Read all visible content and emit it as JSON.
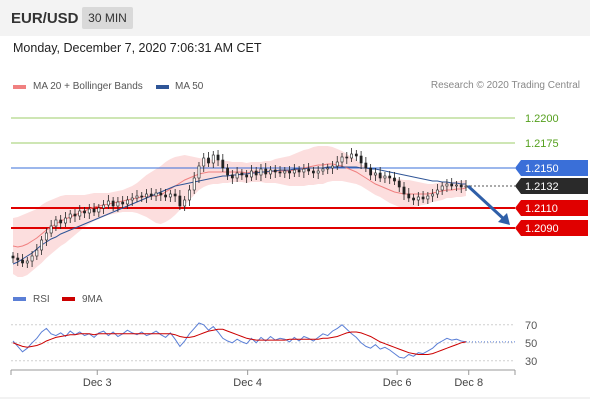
{
  "header": {
    "pair": "EUR/USD",
    "timeframe": "30 MIN",
    "datetime": "Monday, December 7, 2020 7:06:31 AM CET"
  },
  "price_panel": {
    "legend": [
      {
        "label": "MA 20 + Bollinger Bands",
        "color": "#f08080"
      },
      {
        "label": "MA 50",
        "color": "#2f5597"
      }
    ],
    "credit": "Research © 2020 Trading Central"
  },
  "rsi_panel": {
    "legend": [
      {
        "label": "RSI",
        "color": "#5b7fd6"
      },
      {
        "label": "9MA",
        "color": "#cc0000"
      }
    ]
  },
  "chart_data": [
    {
      "type": "candlestick",
      "ylim": [
        1.2042,
        1.2222
      ],
      "x_ticks": [
        "Dec 3",
        "Dec 4",
        "Dec 6",
        "Dec 8"
      ],
      "levels": [
        {
          "value": 1.22,
          "label": "1.2200",
          "color": "#6aab30",
          "style": "line-label"
        },
        {
          "value": 1.2175,
          "label": "1.2175",
          "color": "#6aab30",
          "style": "line-label"
        },
        {
          "value": 1.215,
          "label": "1.2150",
          "color": "#3a6fd8",
          "style": "box"
        },
        {
          "value": 1.2132,
          "label": "1.2132",
          "color": "#2a2a2a",
          "style": "box"
        },
        {
          "value": 1.211,
          "label": "1.2110",
          "color": "#e00000",
          "style": "box"
        },
        {
          "value": 1.209,
          "label": "1.2090",
          "color": "#e00000",
          "style": "box"
        }
      ],
      "forecast_arrow": {
        "from": 1.2132,
        "to": 1.209,
        "color": "#2f5fa8"
      },
      "close": [
        1.206,
        1.2058,
        1.2055,
        1.2057,
        1.2062,
        1.2068,
        1.2078,
        1.2085,
        1.2092,
        1.2098,
        1.2095,
        1.21,
        1.2104,
        1.2102,
        1.2107,
        1.2105,
        1.2109,
        1.2106,
        1.211,
        1.2113,
        1.2117,
        1.2112,
        1.2116,
        1.2114,
        1.2118,
        1.212,
        1.2122,
        1.2121,
        1.2124,
        1.2122,
        1.2125,
        1.2123,
        1.2121,
        1.2124,
        1.2122,
        1.2112,
        1.2118,
        1.2128,
        1.214,
        1.2152,
        1.216,
        1.2155,
        1.2163,
        1.2158,
        1.215,
        1.2143,
        1.214,
        1.2145,
        1.2143,
        1.2141,
        1.2147,
        1.2143,
        1.2149,
        1.2144,
        1.2148,
        1.2146,
        1.2145,
        1.2147,
        1.2145,
        1.2148,
        1.2146,
        1.2149,
        1.2147,
        1.2145,
        1.2147,
        1.2149,
        1.215,
        1.2152,
        1.2156,
        1.2161,
        1.216,
        1.2164,
        1.2162,
        1.2155,
        1.215,
        1.2143,
        1.2145,
        1.214,
        1.2142,
        1.214,
        1.2137,
        1.2131,
        1.2124,
        1.212,
        1.2118,
        1.2121,
        1.2119,
        1.2122,
        1.2124,
        1.2128,
        1.2132,
        1.2134,
        1.2132,
        1.2133,
        1.2131,
        1.2132
      ],
      "ma20": [
        1.2072,
        1.2071,
        1.2072,
        1.2074,
        1.2077,
        1.208,
        1.2084,
        1.2088,
        1.2091,
        1.2094,
        1.2097,
        1.2099,
        1.2101,
        1.2103,
        1.2105,
        1.2107,
        1.2109,
        1.2111,
        1.2112,
        1.2113,
        1.2114,
        1.2115,
        1.2116,
        1.2117,
        1.2118,
        1.2119,
        1.212,
        1.2121,
        1.2122,
        1.2122,
        1.2122,
        1.2123,
        1.2126,
        1.2129,
        1.2132,
        1.2135,
        1.2138,
        1.214,
        1.2142,
        1.2144,
        1.2145,
        1.2146,
        1.2146,
        1.2146,
        1.2146,
        1.2146,
        1.2146,
        1.2146,
        1.2146,
        1.2145,
        1.2146,
        1.2146,
        1.2146,
        1.2146,
        1.2146,
        1.2147,
        1.2147,
        1.2147,
        1.2147,
        1.2148,
        1.2149,
        1.215,
        1.2151,
        1.2152,
        1.2153,
        1.2153,
        1.2154,
        1.2154,
        1.2153,
        1.2152,
        1.215,
        1.2148,
        1.2146,
        1.2143,
        1.214,
        1.2137,
        1.2134,
        1.2132,
        1.213,
        1.2128,
        1.2126,
        1.2125,
        1.2124,
        1.2124,
        1.2124,
        1.2124,
        1.2124,
        1.2124,
        1.2125,
        1.2126,
        1.2127,
        1.2128,
        1.2128,
        1.2129,
        1.2129,
        1.213
      ],
      "bb_width": [
        0.0028,
        0.003,
        0.0031,
        0.0031,
        0.003,
        0.0029,
        0.0029,
        0.0028,
        0.0027,
        0.0026,
        0.0025,
        0.0024,
        0.0022,
        0.002,
        0.0018,
        0.0016,
        0.0015,
        0.0014,
        0.0013,
        0.0012,
        0.0011,
        0.0011,
        0.0011,
        0.0011,
        0.0012,
        0.0013,
        0.0015,
        0.0018,
        0.0021,
        0.0024,
        0.0027,
        0.0029,
        0.003,
        0.003,
        0.0029,
        0.0027,
        0.0025,
        0.0022,
        0.0019,
        0.0016,
        0.0014,
        0.0013,
        0.0012,
        0.0012,
        0.0011,
        0.0011,
        0.001,
        0.001,
        0.001,
        0.001,
        0.001,
        0.001,
        0.001,
        0.0011,
        0.0011,
        0.0012,
        0.0013,
        0.0014,
        0.0015,
        0.0016,
        0.0017,
        0.0018,
        0.0018,
        0.0019,
        0.0019,
        0.0019,
        0.0018,
        0.0017,
        0.0016,
        0.0015,
        0.0014,
        0.0013,
        0.0012,
        0.0011,
        0.0011,
        0.0011,
        0.0011,
        0.0011,
        0.0012,
        0.0013,
        0.0013,
        0.0014,
        0.0014,
        0.0014,
        0.0013,
        0.0012,
        0.0011,
        0.001,
        0.0009,
        0.0009,
        0.0009,
        0.0008,
        0.0008,
        0.0008,
        0.0008,
        0.0008
      ],
      "ma50": [
        1.2054,
        1.2056,
        1.2059,
        1.2062,
        1.2065,
        1.2069,
        1.2073,
        1.2076,
        1.2079,
        1.2081,
        1.2084,
        1.2086,
        1.2088,
        1.209,
        1.2092,
        1.2094,
        1.2096,
        1.2098,
        1.21,
        1.2102,
        1.2104,
        1.2106,
        1.2108,
        1.211,
        1.2112,
        1.2114,
        1.2116,
        1.2118,
        1.212,
        1.2122,
        1.2124,
        1.2126,
        1.2128,
        1.213,
        1.2132,
        1.2133,
        1.2134,
        1.2135,
        1.2136,
        1.2137,
        1.2138,
        1.2139,
        1.214,
        1.2141,
        1.2142,
        1.2142,
        1.2143,
        1.2143,
        1.2144,
        1.2144,
        1.2145,
        1.2145,
        1.2146,
        1.2146,
        1.2147,
        1.2147,
        1.2148,
        1.2148,
        1.2148,
        1.2149,
        1.2149,
        1.2149,
        1.215,
        1.215,
        1.215,
        1.215,
        1.2151,
        1.2151,
        1.2151,
        1.2151,
        1.2151,
        1.2151,
        1.2151,
        1.215,
        1.215,
        1.2149,
        1.2149,
        1.2148,
        1.2147,
        1.2146,
        1.2145,
        1.2144,
        1.2143,
        1.2142,
        1.2141,
        1.214,
        1.2139,
        1.2138,
        1.2137,
        1.2137,
        1.2136,
        1.2136,
        1.2135,
        1.2135,
        1.2134,
        1.2134
      ]
    },
    {
      "type": "line",
      "ylim": [
        22,
        82
      ],
      "y_ticks": [
        70,
        50,
        30
      ],
      "x_ticks": [
        "Dec 3",
        "Dec 4",
        "Dec 6",
        "Dec 8"
      ],
      "series": [
        {
          "name": "RSI",
          "color": "#5b7fd6",
          "values": [
            52,
            46,
            40,
            44,
            50,
            55,
            62,
            66,
            60,
            58,
            61,
            57,
            63,
            59,
            62,
            58,
            60,
            56,
            61,
            63,
            58,
            62,
            57,
            60,
            64,
            61,
            59,
            62,
            58,
            60,
            63,
            59,
            56,
            61,
            54,
            46,
            52,
            60,
            66,
            72,
            70,
            64,
            68,
            62,
            55,
            52,
            50,
            54,
            51,
            49,
            55,
            50,
            56,
            52,
            57,
            53,
            55,
            54,
            51,
            56,
            52,
            57,
            55,
            52,
            56,
            60,
            58,
            63,
            66,
            70,
            65,
            60,
            56,
            50,
            46,
            44,
            48,
            43,
            45,
            42,
            38,
            34,
            33,
            37,
            35,
            39,
            38,
            41,
            44,
            49,
            52,
            55,
            53,
            54,
            52,
            51
          ]
        },
        {
          "name": "9MA",
          "color": "#cc0000",
          "values": [
            50,
            48,
            46,
            45,
            46,
            47,
            49,
            52,
            54,
            56,
            57,
            58,
            59,
            59,
            60,
            60,
            60,
            59,
            60,
            60,
            60,
            60,
            60,
            60,
            60,
            60,
            60,
            60,
            60,
            60,
            60,
            60,
            60,
            60,
            59,
            57,
            56,
            56,
            57,
            59,
            61,
            63,
            64,
            65,
            65,
            63,
            61,
            59,
            57,
            55,
            54,
            53,
            53,
            53,
            53,
            53,
            53,
            53,
            54,
            54,
            54,
            54,
            54,
            54,
            54,
            55,
            55,
            56,
            57,
            59,
            61,
            62,
            62,
            61,
            59,
            57,
            54,
            51,
            49,
            47,
            45,
            43,
            41,
            39,
            38,
            37,
            37,
            37,
            38,
            40,
            42,
            44,
            46,
            48,
            50,
            51
          ]
        }
      ]
    }
  ]
}
